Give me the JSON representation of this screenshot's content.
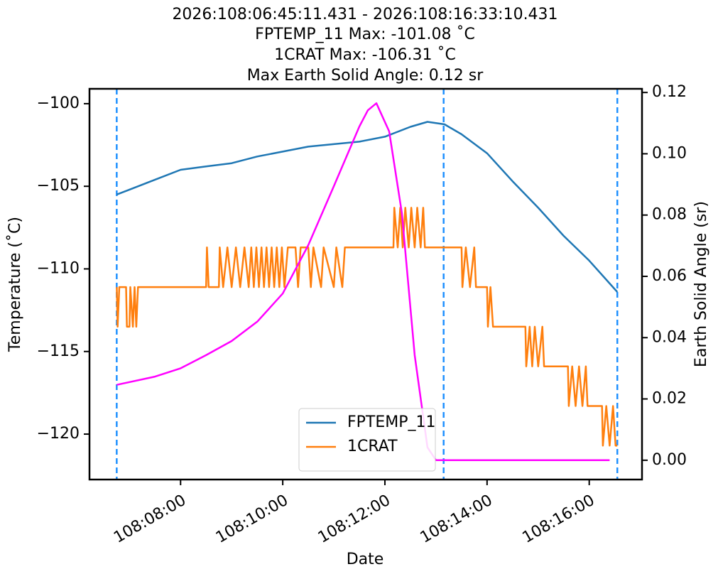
{
  "chart_data": {
    "type": "line",
    "title": [
      "2026:108:06:45:11.431 - 2026:108:16:33:10.431",
      "FPTEMP_11 Max: -101.08 ˚C",
      "1CRAT Max: -106.31 ˚C",
      "Max Earth Solid Angle: 0.12 sr"
    ],
    "xlabel": "Date",
    "ylabel": "Temperature (˚C)",
    "y2label": "Earth Solid Angle (sr)",
    "xlim": [
      "108:06:13",
      "108:17:02"
    ],
    "xticks": [
      "108:08:00",
      "108:10:00",
      "108:12:00",
      "108:14:00",
      "108:16:00"
    ],
    "ylim": [
      -122.75,
      -99.1
    ],
    "yticks": [
      {
        "value": -100,
        "label": "−100"
      },
      {
        "value": -105,
        "label": "−105"
      },
      {
        "value": -110,
        "label": "−110"
      },
      {
        "value": -115,
        "label": "−115"
      },
      {
        "value": -120,
        "label": "−120"
      }
    ],
    "y2lim": [
      -0.0063,
      0.1212
    ],
    "y2ticks": [
      {
        "value": 0,
        "label": "0.00"
      },
      0.02,
      0.04,
      0.06,
      0.08,
      {
        "value": 0.1,
        "label": "0.10"
      },
      0.12
    ],
    "vlines": [
      "108:06:45",
      "108:13:09",
      "108:16:33"
    ],
    "vline_color": "#1e90ff",
    "legend": "lower center",
    "series": [
      {
        "name": "FPTEMP_11",
        "color": "#1f77b4",
        "x": [
          "108:06:45",
          "108:07:00",
          "108:07:30",
          "108:08:00",
          "108:08:30",
          "108:09:00",
          "108:09:30",
          "108:10:00",
          "108:10:30",
          "108:11:00",
          "108:11:30",
          "108:12:00",
          "108:12:30",
          "108:12:50",
          "108:13:10",
          "108:13:30",
          "108:14:00",
          "108:14:30",
          "108:15:00",
          "108:15:30",
          "108:16:00",
          "108:16:33"
        ],
        "values": [
          -105.5,
          -105.2,
          -104.6,
          -104.0,
          -103.8,
          -103.6,
          -103.2,
          -102.9,
          -102.6,
          -102.45,
          -102.3,
          -102.0,
          -101.4,
          -101.1,
          -101.25,
          -101.85,
          -103.0,
          -104.7,
          -106.3,
          -108.0,
          -109.5,
          -111.4
        ]
      },
      {
        "name": "1CRAT",
        "color": "#ff7f0e",
        "x": [
          "108:06:45",
          "108:06:46",
          "108:06:48",
          "108:06:56",
          "108:06:57",
          "108:07:00",
          "108:07:01",
          "108:07:04",
          "108:07:06",
          "108:07:08",
          "108:07:10",
          "108:08:30",
          "108:08:31",
          "108:08:33",
          "108:08:45",
          "108:08:46",
          "108:08:50",
          "108:08:55",
          "108:09:00",
          "108:09:05",
          "108:09:10",
          "108:09:15",
          "108:09:20",
          "108:09:23",
          "108:09:26",
          "108:09:29",
          "108:09:32",
          "108:09:35",
          "108:09:38",
          "108:09:41",
          "108:09:44",
          "108:09:47",
          "108:09:50",
          "108:09:53",
          "108:09:56",
          "108:09:59",
          "108:10:02",
          "108:10:06",
          "108:10:15",
          "108:10:18",
          "108:10:21",
          "108:10:30",
          "108:10:33",
          "108:10:36",
          "108:10:45",
          "108:10:48",
          "108:11:00",
          "108:11:03",
          "108:11:10",
          "108:11:13",
          "108:12:10",
          "108:12:11",
          "108:12:15",
          "108:12:18",
          "108:12:21",
          "108:12:24",
          "108:12:28",
          "108:12:31",
          "108:12:35",
          "108:12:38",
          "108:12:42",
          "108:12:45",
          "108:12:47",
          "108:13:30",
          "108:13:31",
          "108:13:35",
          "108:13:40",
          "108:13:45",
          "108:13:47",
          "108:14:00",
          "108:14:01",
          "108:14:04",
          "108:14:07",
          "108:14:45",
          "108:14:46",
          "108:14:50",
          "108:14:53",
          "108:14:56",
          "108:15:00",
          "108:15:05",
          "108:15:07",
          "108:15:35",
          "108:15:36",
          "108:15:40",
          "108:15:44",
          "108:15:48",
          "108:15:52",
          "108:15:56",
          "108:15:58",
          "108:16:15",
          "108:16:16",
          "108:16:20",
          "108:16:24",
          "108:16:28",
          "108:16:31",
          "108:16:33"
        ],
        "values": [
          -111.1,
          -113.5,
          -111.1,
          -111.1,
          -113.5,
          -113.5,
          -111.1,
          -113.5,
          -111.1,
          -113.5,
          -111.1,
          -111.1,
          -108.7,
          -111.1,
          -111.1,
          -108.7,
          -111.1,
          -108.7,
          -111.1,
          -108.7,
          -111.1,
          -108.7,
          -111.1,
          -108.7,
          -111.1,
          -108.7,
          -111.1,
          -108.7,
          -111.1,
          -108.7,
          -111.1,
          -108.7,
          -111.1,
          -108.7,
          -111.1,
          -108.7,
          -111.1,
          -108.7,
          -108.7,
          -111.1,
          -108.7,
          -108.7,
          -111.1,
          -108.7,
          -111.1,
          -108.7,
          -111.1,
          -108.7,
          -111.1,
          -108.7,
          -108.7,
          -106.3,
          -108.7,
          -106.3,
          -108.7,
          -106.3,
          -108.7,
          -106.3,
          -108.7,
          -106.3,
          -108.7,
          -106.3,
          -108.7,
          -108.7,
          -111.1,
          -108.7,
          -111.1,
          -108.7,
          -111.1,
          -111.1,
          -113.5,
          -111.1,
          -113.5,
          -113.5,
          -115.9,
          -113.5,
          -115.9,
          -113.5,
          -115.9,
          -113.5,
          -115.9,
          -115.9,
          -118.3,
          -115.9,
          -118.3,
          -115.9,
          -118.3,
          -115.9,
          -118.3,
          -118.3,
          -120.7,
          -118.3,
          -120.7,
          -118.3,
          -120.7,
          -120.7
        ]
      },
      {
        "color": "#ff00ff",
        "axis": "y2",
        "x": [
          "108:06:45",
          "108:07:30",
          "108:08:00",
          "108:08:30",
          "108:09:00",
          "108:09:30",
          "108:10:00",
          "108:10:30",
          "108:11:00",
          "108:11:30",
          "108:11:40",
          "108:11:50",
          "108:12:05",
          "108:12:20",
          "108:12:35",
          "108:12:50",
          "108:13:00",
          "108:16:24"
        ],
        "values": [
          0.0246,
          0.0273,
          0.03,
          0.0343,
          0.0389,
          0.0452,
          0.0544,
          0.0702,
          0.0894,
          0.1089,
          0.1142,
          0.1165,
          0.1073,
          0.0806,
          0.0343,
          0.0042,
          0,
          0
        ]
      }
    ]
  }
}
